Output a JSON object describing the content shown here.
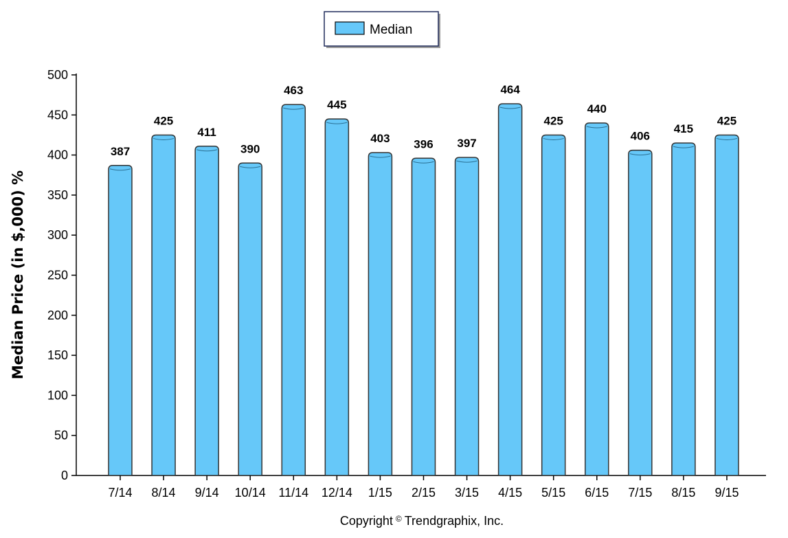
{
  "chart_data": {
    "type": "bar",
    "categories": [
      "7/14",
      "8/14",
      "9/14",
      "10/14",
      "11/14",
      "12/14",
      "1/15",
      "2/15",
      "3/15",
      "4/15",
      "5/15",
      "6/15",
      "7/15",
      "8/15",
      "9/15"
    ],
    "series": [
      {
        "name": "Median",
        "values": [
          387,
          425,
          411,
          390,
          463,
          445,
          403,
          396,
          397,
          464,
          425,
          440,
          406,
          415,
          425
        ],
        "color": "#66c8f9"
      }
    ],
    "data_labels": [
      "387",
      "425",
      "411",
      "390",
      "463",
      "445",
      "403",
      "396",
      "397",
      "464",
      "425",
      "440",
      "406",
      "415",
      "425"
    ],
    "ylabel": "Median Price (in $,000) %",
    "xlabel": "",
    "title": "",
    "ylim": [
      0,
      500
    ],
    "yticks": [
      0,
      50,
      100,
      150,
      200,
      250,
      300,
      350,
      400,
      450,
      500
    ],
    "legend_position": "top-center",
    "grid": false
  },
  "copyright": {
    "prefix": "Copyright",
    "symbol": "©",
    "suffix": "Trendgraphix, Inc."
  },
  "colors": {
    "bar_fill": "#66c8f9",
    "bar_stroke": "#333333",
    "axis": "#000000"
  }
}
